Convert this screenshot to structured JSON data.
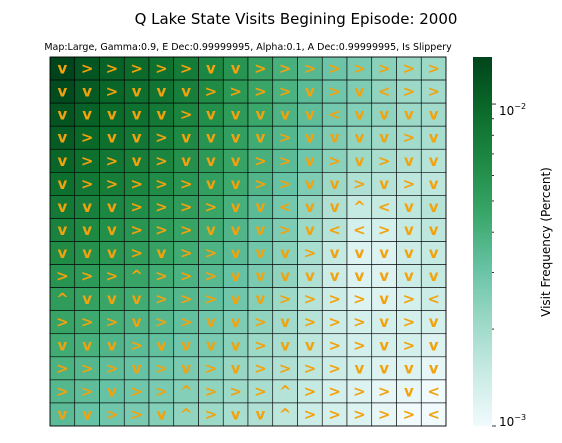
{
  "chart_data": {
    "type": "heatmap",
    "title": "Q Lake State Visits Begining Episode: 2000",
    "subtitle": "Map:Large, Gamma:0.9, E Dec:0.99999995, Alpha:0.1, A Dec:0.99999995, Is Slippery",
    "colorbar": {
      "label": "Visit Frequency (Percent)",
      "scale": "log",
      "range": [
        0.001,
        0.014
      ],
      "ticks": [
        {
          "value": 0.01,
          "label": "10^-2"
        },
        {
          "value": 0.001,
          "label": "10^-3"
        }
      ],
      "colors": [
        "#f1fafd",
        "#c8ebe4",
        "#9bd8c6",
        "#66c2a4",
        "#3aa76a",
        "#1e8a44",
        "#0b6a2a",
        "#00441b"
      ]
    },
    "arrow_color": "#f2a20c",
    "grid_size": [
      16,
      16
    ],
    "arrows": [
      [
        "v",
        ">",
        ">",
        ">",
        ">",
        ">",
        "v",
        "v",
        ">",
        ">",
        ">",
        ">",
        ">",
        ">",
        ">",
        ">"
      ],
      [
        "v",
        "v",
        ">",
        "v",
        "v",
        "v",
        ">",
        ">",
        ">",
        ">",
        "v",
        ">",
        "v",
        "<",
        ">",
        ">"
      ],
      [
        "v",
        "v",
        "v",
        "v",
        "v",
        ">",
        "v",
        "v",
        "v",
        "v",
        "v",
        "<",
        "v",
        "v",
        "v",
        "v"
      ],
      [
        "v",
        ">",
        "v",
        "v",
        ">",
        "v",
        "v",
        "v",
        "v",
        ">",
        "v",
        "v",
        "v",
        "v",
        ">",
        "v"
      ],
      [
        "v",
        ">",
        ">",
        "v",
        ">",
        "v",
        "v",
        "v",
        ">",
        ">",
        "v",
        ">",
        "v",
        ">",
        "v",
        "v"
      ],
      [
        "v",
        ">",
        ">",
        ">",
        ">",
        ">",
        "v",
        "v",
        ">",
        ">",
        "v",
        "v",
        ">",
        "v",
        ">",
        "v"
      ],
      [
        "v",
        "v",
        "v",
        ">",
        ">",
        ">",
        ">",
        "v",
        "v",
        "<",
        "v",
        "v",
        "^",
        "<",
        "v",
        "v"
      ],
      [
        "v",
        "v",
        "v",
        ">",
        ">",
        ">",
        "v",
        "v",
        "v",
        ">",
        "v",
        "<",
        "<",
        ">",
        "v",
        "v"
      ],
      [
        "v",
        "v",
        "v",
        ">",
        "v",
        ">",
        ">",
        "v",
        "v",
        "v",
        ">",
        "v",
        "v",
        "v",
        "v",
        "v"
      ],
      [
        ">",
        ">",
        ">",
        "^",
        ">",
        ">",
        ">",
        "v",
        "v",
        "v",
        "v",
        "v",
        "v",
        "v",
        "v",
        "v"
      ],
      [
        "^",
        "v",
        "v",
        "v",
        ">",
        ">",
        ">",
        "v",
        "v",
        ">",
        ">",
        ">",
        ">",
        "v",
        ">",
        "<"
      ],
      [
        ">",
        ">",
        ">",
        "v",
        ">",
        ">",
        "v",
        "v",
        ">",
        "v",
        ">",
        ">",
        ">",
        "v",
        ">",
        "v"
      ],
      [
        "v",
        "v",
        "v",
        ">",
        "v",
        "v",
        "v",
        "v",
        ">",
        "v",
        "v",
        ">",
        ">",
        "v",
        ">",
        "v"
      ],
      [
        ">",
        ">",
        ">",
        "v",
        ">",
        "v",
        ">",
        "v",
        ">",
        ">",
        ">",
        ">",
        "v",
        "v",
        "v",
        "v"
      ],
      [
        ">",
        ">",
        "v",
        ">",
        ">",
        "^",
        ">",
        ">",
        ">",
        "^",
        ">",
        ">",
        ">",
        ">",
        "v",
        "<"
      ],
      [
        "v",
        "v",
        ">",
        ">",
        "v",
        "^",
        ">",
        "v",
        "v",
        "^",
        ">",
        ">",
        ">",
        ">",
        ">",
        "<"
      ]
    ],
    "visit_frequency": [
      [
        0.014,
        0.0118,
        0.0105,
        0.0095,
        0.0088,
        0.0078,
        0.0068,
        0.0058,
        0.0048,
        0.004,
        0.0035,
        0.003,
        0.0027,
        0.0024,
        0.0022,
        0.0021
      ],
      [
        0.013,
        0.0112,
        0.01,
        0.0092,
        0.0085,
        0.0075,
        0.0065,
        0.0055,
        0.0046,
        0.0039,
        0.0034,
        0.0029,
        0.0026,
        0.0023,
        0.0021,
        0.002
      ],
      [
        0.012,
        0.0105,
        0.0095,
        0.0088,
        0.008,
        0.007,
        0.0062,
        0.0053,
        0.0045,
        0.0038,
        0.0033,
        0.0028,
        0.0025,
        0.0023,
        0.0021,
        0.002
      ],
      [
        0.011,
        0.0098,
        0.009,
        0.0082,
        0.0075,
        0.0066,
        0.0058,
        0.005,
        0.0043,
        0.0036,
        0.0031,
        0.0026,
        0.0023,
        0.0021,
        0.002,
        0.0019
      ],
      [
        0.01,
        0.009,
        0.0083,
        0.0076,
        0.0069,
        0.0061,
        0.0054,
        0.0047,
        0.004,
        0.0034,
        0.0029,
        0.0024,
        0.0021,
        0.0019,
        0.0018,
        0.0017
      ],
      [
        0.009,
        0.0082,
        0.0076,
        0.007,
        0.0064,
        0.0057,
        0.005,
        0.0044,
        0.0037,
        0.0031,
        0.0026,
        0.0021,
        0.0018,
        0.0017,
        0.0016,
        0.0016
      ],
      [
        0.008,
        0.0074,
        0.0068,
        0.0063,
        0.0058,
        0.0052,
        0.0046,
        0.004,
        0.0034,
        0.0028,
        0.0023,
        0.0018,
        0.0015,
        0.0015,
        0.0016,
        0.0017
      ],
      [
        0.0072,
        0.0067,
        0.0062,
        0.0057,
        0.0052,
        0.0047,
        0.0042,
        0.0037,
        0.0031,
        0.0026,
        0.0021,
        0.0017,
        0.0013,
        0.0013,
        0.0015,
        0.0016
      ],
      [
        0.0065,
        0.006,
        0.0056,
        0.0052,
        0.0048,
        0.0043,
        0.0038,
        0.0034,
        0.0029,
        0.0024,
        0.0019,
        0.0015,
        0.0012,
        0.0012,
        0.0014,
        0.0015
      ],
      [
        0.0058,
        0.0054,
        0.005,
        0.0047,
        0.0043,
        0.0039,
        0.0035,
        0.0031,
        0.0027,
        0.0023,
        0.0018,
        0.0014,
        0.0012,
        0.0012,
        0.0014,
        0.0015
      ],
      [
        0.0052,
        0.0049,
        0.0046,
        0.0043,
        0.0039,
        0.0036,
        0.0032,
        0.0029,
        0.0025,
        0.0021,
        0.0017,
        0.0014,
        0.0012,
        0.0012,
        0.0013,
        0.0014
      ],
      [
        0.0047,
        0.0044,
        0.0041,
        0.0038,
        0.0035,
        0.0032,
        0.0029,
        0.0026,
        0.0023,
        0.002,
        0.0017,
        0.0014,
        0.0013,
        0.0013,
        0.0013,
        0.0013
      ],
      [
        0.0043,
        0.004,
        0.0037,
        0.0034,
        0.0032,
        0.0029,
        0.0027,
        0.0024,
        0.0021,
        0.0019,
        0.0016,
        0.0014,
        0.0013,
        0.0013,
        0.0013,
        0.0012
      ],
      [
        0.0039,
        0.0036,
        0.0033,
        0.0031,
        0.0029,
        0.0027,
        0.0025,
        0.0022,
        0.002,
        0.0018,
        0.0016,
        0.0014,
        0.0013,
        0.0012,
        0.0012,
        0.0011
      ],
      [
        0.0036,
        0.0033,
        0.0031,
        0.0029,
        0.0027,
        0.0025,
        0.0023,
        0.0021,
        0.0019,
        0.0017,
        0.0015,
        0.0013,
        0.0012,
        0.0011,
        0.0011,
        0.001
      ],
      [
        0.0034,
        0.0031,
        0.0029,
        0.0027,
        0.0025,
        0.0023,
        0.0021,
        0.0019,
        0.0018,
        0.0016,
        0.0014,
        0.0013,
        0.0012,
        0.0011,
        0.001,
        0.001
      ]
    ]
  }
}
